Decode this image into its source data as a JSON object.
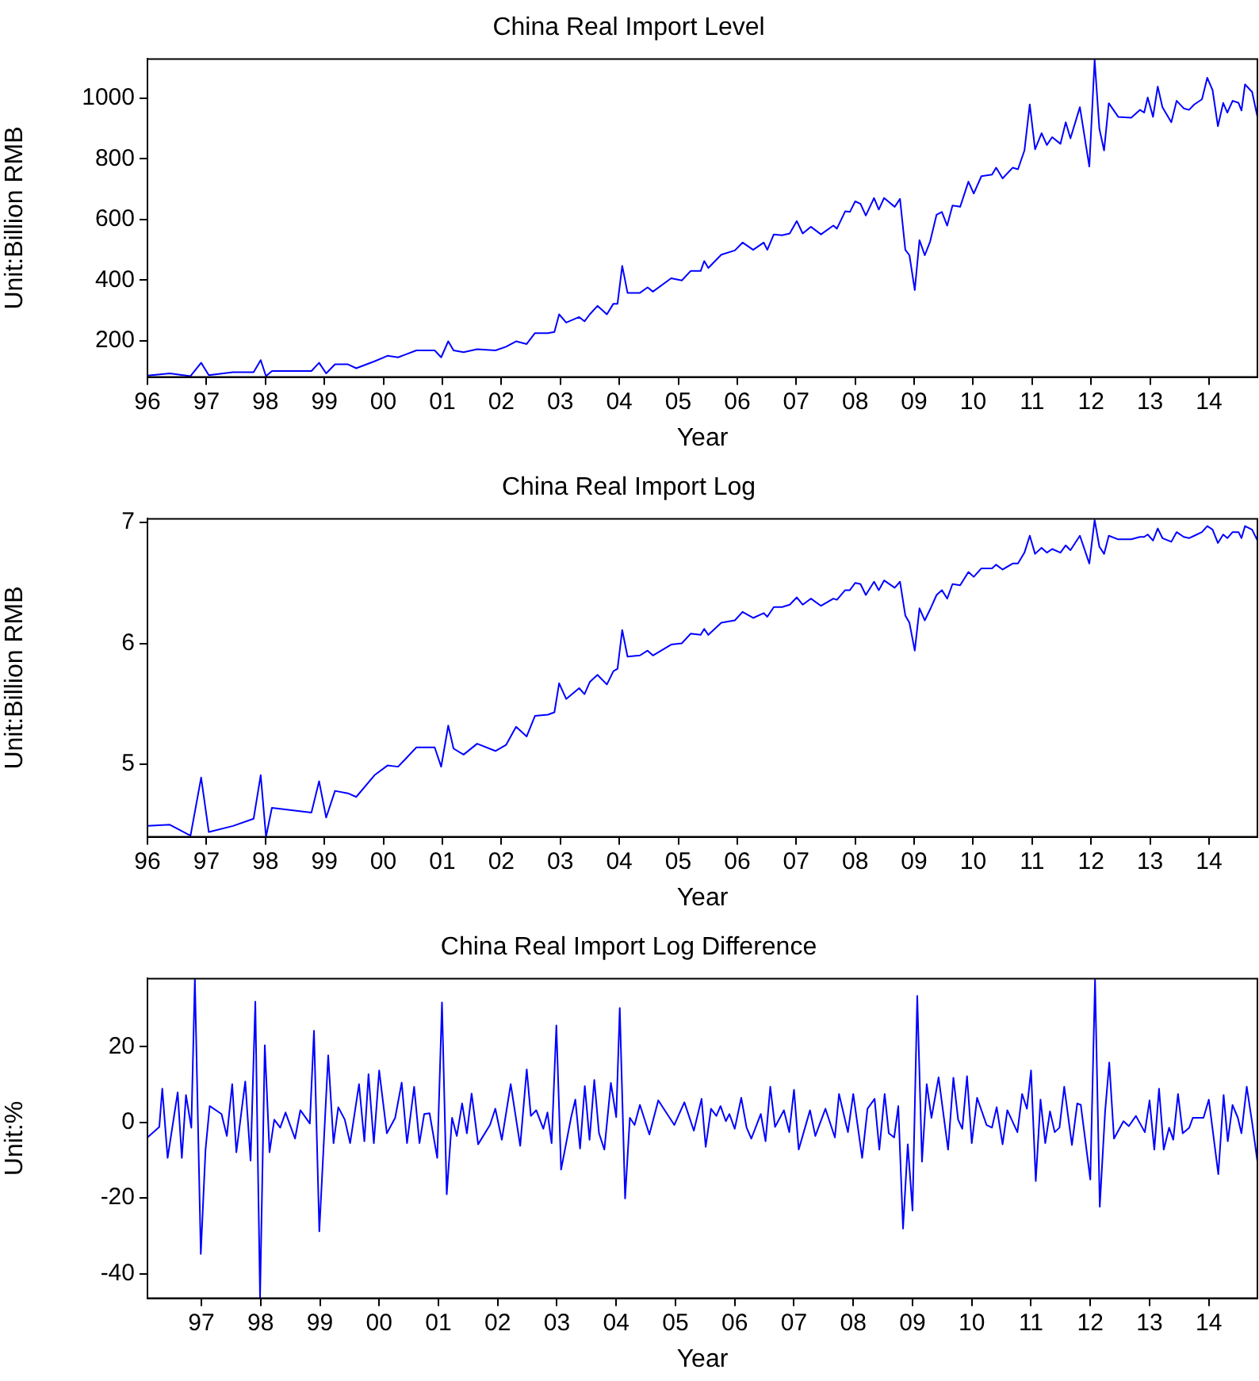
{
  "chart_data": [
    {
      "type": "line",
      "title": "China Real Import Level",
      "xlabel": "Year",
      "ylabel": "Unit:Billion RMB",
      "grid": false,
      "legend": false,
      "xlim": [
        1996,
        2014.82
      ],
      "ylim": [
        80,
        1130
      ],
      "xticks": [
        {
          "value": 1996,
          "label": "96"
        },
        {
          "value": 1997,
          "label": "97"
        },
        {
          "value": 1998,
          "label": "98"
        },
        {
          "value": 1999,
          "label": "99"
        },
        {
          "value": 2000,
          "label": "00"
        },
        {
          "value": 2001,
          "label": "01"
        },
        {
          "value": 2002,
          "label": "02"
        },
        {
          "value": 2003,
          "label": "03"
        },
        {
          "value": 2004,
          "label": "04"
        },
        {
          "value": 2005,
          "label": "05"
        },
        {
          "value": 2006,
          "label": "06"
        },
        {
          "value": 2007,
          "label": "07"
        },
        {
          "value": 2008,
          "label": "08"
        },
        {
          "value": 2009,
          "label": "09"
        },
        {
          "value": 2010,
          "label": "10"
        },
        {
          "value": 2011,
          "label": "11"
        },
        {
          "value": 2012,
          "label": "12"
        },
        {
          "value": 2013,
          "label": "13"
        },
        {
          "value": 2014,
          "label": "14"
        }
      ],
      "yticks": [
        200,
        400,
        600,
        800,
        1000
      ],
      "x": [
        1996.0,
        1996.38,
        1996.73,
        1996.91,
        1997.04,
        1997.45,
        1997.8,
        1997.92,
        1998.01,
        1998.11,
        1998.78,
        1998.91,
        1999.03,
        1999.18,
        1999.4,
        1999.54,
        1999.85,
        2000.07,
        2000.25,
        2000.56,
        2000.87,
        2000.98,
        2001.1,
        2001.19,
        2001.36,
        2001.59,
        2001.9,
        2002.08,
        2002.25,
        2002.43,
        2002.57,
        2002.79,
        2002.9,
        2002.98,
        2003.1,
        2003.32,
        2003.41,
        2003.5,
        2003.63,
        2003.79,
        2003.9,
        2003.97,
        2004.05,
        2004.14,
        2004.35,
        2004.48,
        2004.57,
        2004.88,
        2005.06,
        2005.21,
        2005.38,
        2005.44,
        2005.51,
        2005.73,
        2005.96,
        2006.09,
        2006.27,
        2006.45,
        2006.51,
        2006.62,
        2006.76,
        2006.89,
        2007.01,
        2007.11,
        2007.25,
        2007.42,
        2007.63,
        2007.69,
        2007.83,
        2007.91,
        2008.0,
        2008.09,
        2008.18,
        2008.32,
        2008.4,
        2008.49,
        2008.67,
        2008.76,
        2008.85,
        2008.92,
        2009.01,
        2009.09,
        2009.18,
        2009.27,
        2009.38,
        2009.47,
        2009.56,
        2009.65,
        2009.78,
        2009.92,
        2010.01,
        2010.14,
        2010.32,
        2010.39,
        2010.5,
        2010.67,
        2010.76,
        2010.87,
        2010.96,
        2011.05,
        2011.16,
        2011.25,
        2011.34,
        2011.48,
        2011.57,
        2011.65,
        2011.81,
        2011.97,
        2012.06,
        2012.14,
        2012.22,
        2012.3,
        2012.46,
        2012.68,
        2012.83,
        2012.9,
        2012.96,
        2013.05,
        2013.13,
        2013.21,
        2013.36,
        2013.45,
        2013.57,
        2013.66,
        2013.75,
        2013.88,
        2013.97,
        2014.06,
        2014.15,
        2014.24,
        2014.31,
        2014.4,
        2014.5,
        2014.55,
        2014.61,
        2014.73,
        2014.82
      ],
      "series": [
        {
          "color": "#0000ff",
          "values": [
            85,
            92,
            83,
            127,
            86,
            96,
            96,
            136,
            83,
            100,
            100,
            127,
            92,
            122,
            122,
            109,
            132,
            150,
            145,
            168,
            168,
            145,
            198,
            168,
            162,
            172,
            168,
            180,
            198,
            189,
            225,
            225,
            229,
            287,
            260,
            278,
            264,
            287,
            315,
            287,
            322,
            322,
            447,
            358,
            358,
            376,
            362,
            406,
            399,
            430,
            430,
            463,
            440,
            484,
            498,
            524,
            500,
            524,
            500,
            551,
            548,
            554,
            595,
            554,
            576,
            551,
            580,
            570,
            627,
            625,
            660,
            652,
            613,
            671,
            633,
            671,
            642,
            668,
            500,
            482,
            367,
            532,
            482,
            527,
            616,
            625,
            580,
            646,
            642,
            725,
            686,
            743,
            748,
            771,
            736,
            771,
            766,
            828,
            980,
            832,
            885,
            846,
            872,
            850,
            921,
            868,
            971,
            775,
            1127,
            900,
            828,
            984,
            939,
            936,
            962,
            953,
            1003,
            939,
            1039,
            971,
            921,
            992,
            967,
            962,
            980,
            997,
            1068,
            1027,
            908,
            985,
            953,
            992,
            985,
            960,
            1046,
            1021,
            939
          ]
        }
      ]
    },
    {
      "type": "line",
      "title": "China Real Import Log",
      "xlabel": "Year",
      "ylabel": "Unit:Billion RMB",
      "grid": false,
      "legend": false,
      "xlim": [
        1996,
        2014.82
      ],
      "ylim": [
        4.4,
        7.03
      ],
      "xticks": [
        {
          "value": 1996,
          "label": "96"
        },
        {
          "value": 1997,
          "label": "97"
        },
        {
          "value": 1998,
          "label": "98"
        },
        {
          "value": 1999,
          "label": "99"
        },
        {
          "value": 2000,
          "label": "00"
        },
        {
          "value": 2001,
          "label": "01"
        },
        {
          "value": 2002,
          "label": "02"
        },
        {
          "value": 2003,
          "label": "03"
        },
        {
          "value": 2004,
          "label": "04"
        },
        {
          "value": 2005,
          "label": "05"
        },
        {
          "value": 2006,
          "label": "06"
        },
        {
          "value": 2007,
          "label": "07"
        },
        {
          "value": 2008,
          "label": "08"
        },
        {
          "value": 2009,
          "label": "09"
        },
        {
          "value": 2010,
          "label": "10"
        },
        {
          "value": 2011,
          "label": "11"
        },
        {
          "value": 2012,
          "label": "12"
        },
        {
          "value": 2013,
          "label": "13"
        },
        {
          "value": 2014,
          "label": "14"
        }
      ],
      "yticks": [
        5,
        6,
        7
      ],
      "x": [
        1996.0,
        1996.38,
        1996.73,
        1996.91,
        1997.04,
        1997.45,
        1997.8,
        1997.92,
        1998.01,
        1998.11,
        1998.78,
        1998.91,
        1999.03,
        1999.18,
        1999.4,
        1999.54,
        1999.85,
        2000.07,
        2000.25,
        2000.56,
        2000.87,
        2000.98,
        2001.1,
        2001.19,
        2001.36,
        2001.59,
        2001.9,
        2002.08,
        2002.25,
        2002.43,
        2002.57,
        2002.79,
        2002.9,
        2002.98,
        2003.1,
        2003.32,
        2003.41,
        2003.5,
        2003.63,
        2003.79,
        2003.9,
        2003.97,
        2004.05,
        2004.14,
        2004.35,
        2004.48,
        2004.57,
        2004.88,
        2005.06,
        2005.21,
        2005.38,
        2005.44,
        2005.51,
        2005.73,
        2005.96,
        2006.09,
        2006.27,
        2006.45,
        2006.51,
        2006.62,
        2006.76,
        2006.89,
        2007.01,
        2007.11,
        2007.25,
        2007.42,
        2007.63,
        2007.69,
        2007.83,
        2007.91,
        2008.0,
        2008.09,
        2008.18,
        2008.32,
        2008.4,
        2008.49,
        2008.67,
        2008.76,
        2008.85,
        2008.92,
        2009.01,
        2009.09,
        2009.18,
        2009.27,
        2009.38,
        2009.47,
        2009.56,
        2009.65,
        2009.78,
        2009.92,
        2010.01,
        2010.14,
        2010.32,
        2010.39,
        2010.5,
        2010.67,
        2010.76,
        2010.87,
        2010.96,
        2011.05,
        2011.16,
        2011.25,
        2011.34,
        2011.48,
        2011.57,
        2011.65,
        2011.81,
        2011.97,
        2012.06,
        2012.14,
        2012.22,
        2012.3,
        2012.46,
        2012.68,
        2012.83,
        2012.9,
        2012.96,
        2013.05,
        2013.13,
        2013.21,
        2013.36,
        2013.45,
        2013.57,
        2013.66,
        2013.75,
        2013.88,
        2013.97,
        2014.06,
        2014.15,
        2014.24,
        2014.31,
        2014.4,
        2014.5,
        2014.55,
        2014.61,
        2014.73,
        2014.82
      ],
      "series": [
        {
          "color": "#0000ff",
          "values": [
            4.49,
            4.5,
            4.41,
            4.89,
            4.44,
            4.49,
            4.55,
            4.91,
            4.4,
            4.64,
            4.6,
            4.86,
            4.56,
            4.78,
            4.76,
            4.73,
            4.91,
            4.99,
            4.98,
            5.14,
            5.14,
            4.98,
            5.32,
            5.13,
            5.08,
            5.17,
            5.11,
            5.16,
            5.31,
            5.23,
            5.4,
            5.41,
            5.43,
            5.67,
            5.54,
            5.63,
            5.58,
            5.68,
            5.74,
            5.66,
            5.77,
            5.79,
            6.11,
            5.89,
            5.9,
            5.94,
            5.9,
            5.99,
            6.0,
            6.08,
            6.07,
            6.12,
            6.07,
            6.17,
            6.19,
            6.26,
            6.21,
            6.25,
            6.22,
            6.3,
            6.3,
            6.32,
            6.38,
            6.32,
            6.37,
            6.31,
            6.37,
            6.36,
            6.44,
            6.44,
            6.5,
            6.49,
            6.4,
            6.51,
            6.44,
            6.52,
            6.46,
            6.51,
            6.23,
            6.17,
            5.94,
            6.29,
            6.19,
            6.28,
            6.4,
            6.44,
            6.37,
            6.49,
            6.48,
            6.59,
            6.55,
            6.62,
            6.62,
            6.65,
            6.61,
            6.66,
            6.66,
            6.75,
            6.89,
            6.74,
            6.79,
            6.75,
            6.78,
            6.75,
            6.81,
            6.77,
            6.89,
            6.66,
            7.02,
            6.8,
            6.74,
            6.89,
            6.86,
            6.86,
            6.88,
            6.88,
            6.9,
            6.85,
            6.95,
            6.87,
            6.84,
            6.92,
            6.88,
            6.87,
            6.89,
            6.92,
            6.97,
            6.94,
            6.83,
            6.9,
            6.87,
            6.92,
            6.92,
            6.87,
            6.97,
            6.94,
            6.85
          ]
        }
      ]
    },
    {
      "type": "line",
      "title": "China Real Import Log Difference",
      "xlabel": "Year",
      "ylabel": "Unit:%",
      "grid": false,
      "legend": false,
      "xlim": [
        1996.09,
        2014.82
      ],
      "ylim": [
        -46.5,
        38
      ],
      "xticks": [
        {
          "value": 1997,
          "label": "97"
        },
        {
          "value": 1998,
          "label": "98"
        },
        {
          "value": 1999,
          "label": "99"
        },
        {
          "value": 2000,
          "label": "00"
        },
        {
          "value": 2001,
          "label": "01"
        },
        {
          "value": 2002,
          "label": "02"
        },
        {
          "value": 2003,
          "label": "03"
        },
        {
          "value": 2004,
          "label": "04"
        },
        {
          "value": 2005,
          "label": "05"
        },
        {
          "value": 2006,
          "label": "06"
        },
        {
          "value": 2007,
          "label": "07"
        },
        {
          "value": 2008,
          "label": "08"
        },
        {
          "value": 2009,
          "label": "09"
        },
        {
          "value": 2010,
          "label": "10"
        },
        {
          "value": 2011,
          "label": "11"
        },
        {
          "value": 2012,
          "label": "12"
        },
        {
          "value": 2013,
          "label": "13"
        },
        {
          "value": 2014,
          "label": "14"
        }
      ],
      "yticks": [
        -40,
        -20,
        0,
        20
      ],
      "x": [
        1996.09,
        1996.29,
        1996.34,
        1996.43,
        1996.6,
        1996.67,
        1996.74,
        1996.83,
        1996.89,
        1996.99,
        1997.07,
        1997.14,
        1997.34,
        1997.43,
        1997.52,
        1997.59,
        1997.74,
        1997.83,
        1997.91,
        1997.99,
        1998.07,
        1998.15,
        1998.23,
        1998.33,
        1998.42,
        1998.58,
        1998.67,
        1998.83,
        1998.9,
        1998.99,
        1999.14,
        1999.23,
        1999.31,
        1999.42,
        1999.51,
        1999.66,
        1999.75,
        1999.82,
        1999.91,
        2000.0,
        2000.13,
        2000.27,
        2000.38,
        2000.47,
        2000.59,
        2000.68,
        2000.76,
        2000.85,
        2000.98,
        2001.06,
        2001.14,
        2001.23,
        2001.31,
        2001.4,
        2001.48,
        2001.56,
        2001.67,
        2001.87,
        2001.96,
        2002.07,
        2002.22,
        2002.38,
        2002.49,
        2002.56,
        2002.65,
        2002.77,
        2002.84,
        2002.91,
        2002.99,
        2003.07,
        2003.24,
        2003.31,
        2003.39,
        2003.47,
        2003.55,
        2003.63,
        2003.71,
        2003.8,
        2003.91,
        2004.0,
        2004.06,
        2004.15,
        2004.23,
        2004.31,
        2004.4,
        2004.56,
        2004.71,
        2004.98,
        2005.15,
        2005.31,
        2005.44,
        2005.51,
        2005.6,
        2005.69,
        2005.76,
        2005.85,
        2005.91,
        2006.0,
        2006.11,
        2006.2,
        2006.28,
        2006.44,
        2006.52,
        2006.6,
        2006.68,
        2006.83,
        2006.92,
        2007.0,
        2007.08,
        2007.27,
        2007.36,
        2007.53,
        2007.69,
        2007.76,
        2007.91,
        2008.0,
        2008.15,
        2008.24,
        2008.36,
        2008.44,
        2008.53,
        2008.6,
        2008.69,
        2008.76,
        2008.84,
        2008.92,
        2009.0,
        2009.08,
        2009.16,
        2009.24,
        2009.32,
        2009.44,
        2009.6,
        2009.69,
        2009.77,
        2009.84,
        2009.92,
        2010.0,
        2010.09,
        2010.25,
        2010.34,
        2010.42,
        2010.52,
        2010.6,
        2010.77,
        2010.85,
        2010.93,
        2011.0,
        2011.08,
        2011.16,
        2011.24,
        2011.32,
        2011.4,
        2011.48,
        2011.56,
        2011.69,
        2011.78,
        2011.84,
        2012.0,
        2012.08,
        2012.16,
        2012.25,
        2012.32,
        2012.4,
        2012.56,
        2012.65,
        2012.77,
        2012.92,
        2013.0,
        2013.08,
        2013.16,
        2013.24,
        2013.33,
        2013.4,
        2013.48,
        2013.56,
        2013.67,
        2013.73,
        2013.91,
        2014.0,
        2014.16,
        2014.25,
        2014.32,
        2014.4,
        2014.49,
        2014.55,
        2014.64,
        2014.73,
        2014.82
      ],
      "series": [
        {
          "color": "#0000ff",
          "values": [
            -4.0,
            -1.2,
            8.9,
            -9.4,
            7.9,
            -9.4,
            7.2,
            -1.4,
            38,
            -34.8,
            -7.2,
            4.3,
            2.2,
            -3.6,
            10.1,
            -7.9,
            10.8,
            -10.1,
            31.9,
            -46.5,
            20.4,
            -7.9,
            0.7,
            -1.4,
            2.6,
            -4.3,
            3.2,
            -0.3,
            24.2,
            -28.8,
            17.7,
            -5.5,
            4.0,
            0.7,
            -5.5,
            10.1,
            -5.0,
            12.7,
            -5.5,
            13.7,
            -2.9,
            1.2,
            10.5,
            -5.5,
            9.4,
            -5.5,
            2.2,
            2.4,
            -9.4,
            31.7,
            -19.0,
            1.2,
            -3.6,
            5.0,
            -2.9,
            7.6,
            -5.8,
            -0.7,
            3.6,
            -4.6,
            10.1,
            -6.2,
            14.0,
            1.7,
            3.2,
            -1.7,
            2.6,
            -5.5,
            25.6,
            -12.5,
            1.4,
            6.0,
            -6.9,
            9.6,
            -4.6,
            11.2,
            -2.9,
            -7.2,
            10.4,
            1.4,
            30.2,
            -20.1,
            1.2,
            -0.7,
            4.6,
            -3.2,
            5.8,
            -0.7,
            5.3,
            -2.2,
            6.2,
            -6.5,
            3.6,
            1.7,
            4.3,
            0.3,
            2.2,
            -1.7,
            6.5,
            -1.4,
            -4.3,
            2.2,
            -5.0,
            9.4,
            -1.2,
            3.2,
            -2.6,
            8.6,
            -7.2,
            3.2,
            -3.6,
            3.6,
            -4.0,
            7.5,
            -2.6,
            7.5,
            -9.4,
            3.6,
            6.2,
            -7.2,
            7.5,
            -2.9,
            -4.0,
            4.3,
            -28.1,
            -5.8,
            -23.3,
            33.4,
            -10.4,
            10.1,
            1.2,
            11.9,
            -7.2,
            11.8,
            0.7,
            -1.7,
            12.2,
            -5.5,
            6.5,
            -0.7,
            -1.4,
            4.0,
            -5.8,
            3.2,
            -2.6,
            7.5,
            3.6,
            13.7,
            -15.5,
            6.0,
            -5.5,
            2.9,
            -2.6,
            -1.4,
            9.4,
            -6.0,
            5.0,
            4.6,
            -15.1,
            37.7,
            -22.3,
            2.9,
            15.8,
            -4.3,
            0.3,
            -1.0,
            1.7,
            -2.6,
            5.8,
            -7.2,
            8.9,
            -7.2,
            -1.4,
            -4.6,
            7.5,
            -2.9,
            -1.4,
            1.2,
            1.2,
            6.0,
            -13.7,
            7.2,
            -5.0,
            4.6,
            1.2,
            -2.9,
            9.4,
            0,
            -10.4
          ]
        }
      ]
    }
  ]
}
